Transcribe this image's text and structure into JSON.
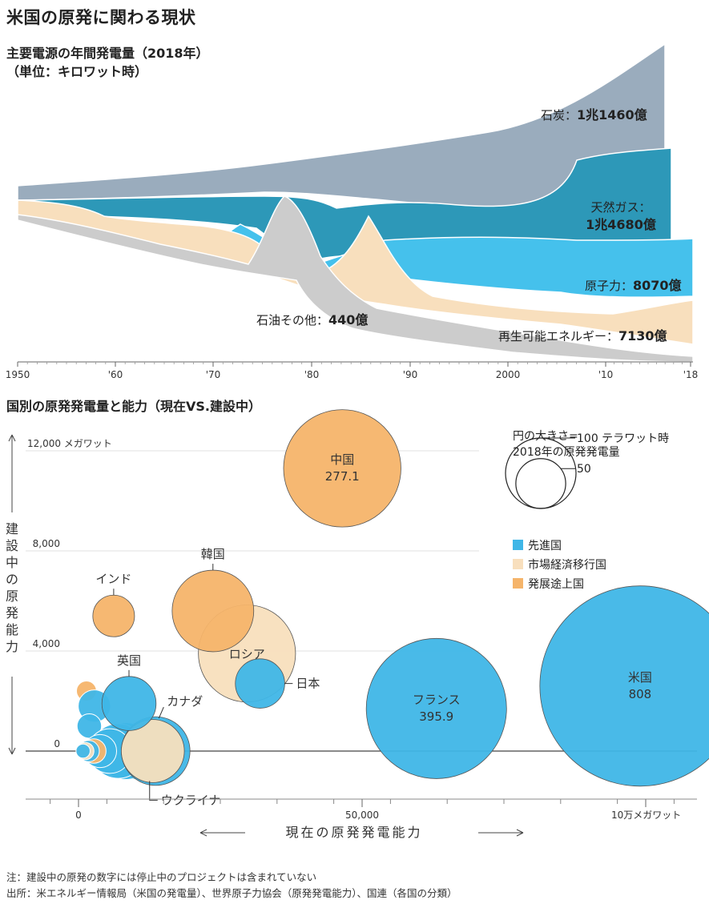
{
  "page": {
    "title": "米国の原発に関わる現状",
    "note": "注：建設中の原発の数字には停止中のプロジェクトは含まれていない",
    "source": "出所：米エネルギー情報局（米国の発電量）、世界原子力協会（原発発電能力）、国連（各国の分類）"
  },
  "colors": {
    "coal": "#9aacbd",
    "gas": "#2d98b8",
    "nuclear": "#45c1ec",
    "renewable": "#f8dfbd",
    "oil": "#cccccc",
    "advanced": "#3fb6e7",
    "transition": "#f8dfbd",
    "developing": "#f5b46a"
  },
  "chart_data": [
    {
      "type": "area",
      "title": "主要電源の年間発電量（2018年）",
      "subtitle": "（単位：キロワット時）",
      "x_ticks": [
        "1950",
        "'60",
        "'70",
        "'80",
        "'90",
        "2000",
        "'10",
        "'18"
      ],
      "series": [
        {
          "key": "coal",
          "name": "石炭",
          "value_label": "1兆1460億"
        },
        {
          "key": "gas",
          "name": "天然ガス：",
          "value_label": "1兆4680億"
        },
        {
          "key": "nuclear",
          "name": "原子力",
          "value_label": "8070億"
        },
        {
          "key": "renewable",
          "name": "再生可能エネルギー",
          "value_label": "7130億"
        },
        {
          "key": "oil",
          "name": "石油その他",
          "value_label": "440億"
        }
      ]
    },
    {
      "type": "scatter",
      "title": "国別の原発発電量と能力（現在VS.建設中）",
      "xlabel": "現在の原発発電能力",
      "ylabel": "建設中の原発能力",
      "x_ticks": [
        {
          "value": 0,
          "label": "0"
        },
        {
          "value": 50000,
          "label": "50,000"
        },
        {
          "value": 100000,
          "label": "10万メガワット"
        }
      ],
      "y_ticks": [
        {
          "value": 0,
          "label": "0"
        },
        {
          "value": 4000,
          "label": "4,000"
        },
        {
          "value": 8000,
          "label": "8,000"
        },
        {
          "value": 12000,
          "label": "12,000 メガワット"
        }
      ],
      "xlim": [
        -9000,
        109000
      ],
      "ylim": [
        -2000,
        13000
      ],
      "size_legend": {
        "title_line1": "円の大きさ=",
        "title_line2": "2018年の原発発電量",
        "big_value": 100,
        "big_label": "100 テラワット時",
        "small_value": 50,
        "small_label": "50"
      },
      "category_legend": [
        {
          "key": "advanced",
          "label": "先進国"
        },
        {
          "key": "transition",
          "label": "市場経済移行国"
        },
        {
          "key": "developing",
          "label": "発展途上国"
        }
      ],
      "points": [
        {
          "name": "米国",
          "value_label": "808",
          "x": 99000,
          "y": 2600,
          "gen": 808,
          "cat": "advanced"
        },
        {
          "name": "フランス",
          "value_label": "395.9",
          "x": 63100,
          "y": 1700,
          "gen": 395.9,
          "cat": "advanced"
        },
        {
          "name": "中国",
          "value_label": "277.1",
          "x": 46500,
          "y": 11300,
          "gen": 277.1,
          "cat": "developing"
        },
        {
          "name": "ロシア",
          "value_label": "",
          "x": 29700,
          "y": 3900,
          "gen": 190,
          "cat": "transition"
        },
        {
          "name": "韓国",
          "value_label": "",
          "x": 23700,
          "y": 5600,
          "gen": 134,
          "cat": "developing"
        },
        {
          "name": "日本",
          "value_label": "",
          "x": 32000,
          "y": 2700,
          "gen": 49,
          "cat": "advanced"
        },
        {
          "name": "英国",
          "value_label": "",
          "x": 8900,
          "y": 1900,
          "gen": 59,
          "cat": "advanced"
        },
        {
          "name": "インド",
          "value_label": "",
          "x": 6200,
          "y": 5400,
          "gen": 35,
          "cat": "developing"
        },
        {
          "name": "カナダ",
          "value_label": "",
          "x": 13600,
          "y": 0,
          "gen": 95,
          "cat": "advanced"
        },
        {
          "name": "ウクライナ",
          "value_label": "",
          "x": 13100,
          "y": 0,
          "gen": 80,
          "cat": "transition"
        }
      ],
      "unlabeled_points": [
        {
          "x": 1400,
          "y": 2400,
          "gen": 8,
          "cat": "developing"
        },
        {
          "x": 2800,
          "y": 1800,
          "gen": 21,
          "cat": "advanced"
        },
        {
          "x": 1900,
          "y": 1000,
          "gen": 12,
          "cat": "advanced"
        },
        {
          "x": 9600,
          "y": 0,
          "gen": 65,
          "cat": "advanced"
        },
        {
          "x": 8300,
          "y": 0,
          "gen": 65,
          "cat": "advanced"
        },
        {
          "x": 7000,
          "y": 0,
          "gen": 60,
          "cat": "advanced"
        },
        {
          "x": 5500,
          "y": 0,
          "gen": 40,
          "cat": "advanced"
        },
        {
          "x": 3800,
          "y": 0,
          "gen": 22,
          "cat": "advanced"
        },
        {
          "x": 2700,
          "y": 0,
          "gen": 12,
          "cat": "developing"
        },
        {
          "x": 1800,
          "y": 0,
          "gen": 9,
          "cat": "advanced"
        },
        {
          "x": 1200,
          "y": 0,
          "gen": 6,
          "cat": "transition"
        },
        {
          "x": 800,
          "y": 0,
          "gen": 4,
          "cat": "advanced"
        }
      ]
    }
  ]
}
